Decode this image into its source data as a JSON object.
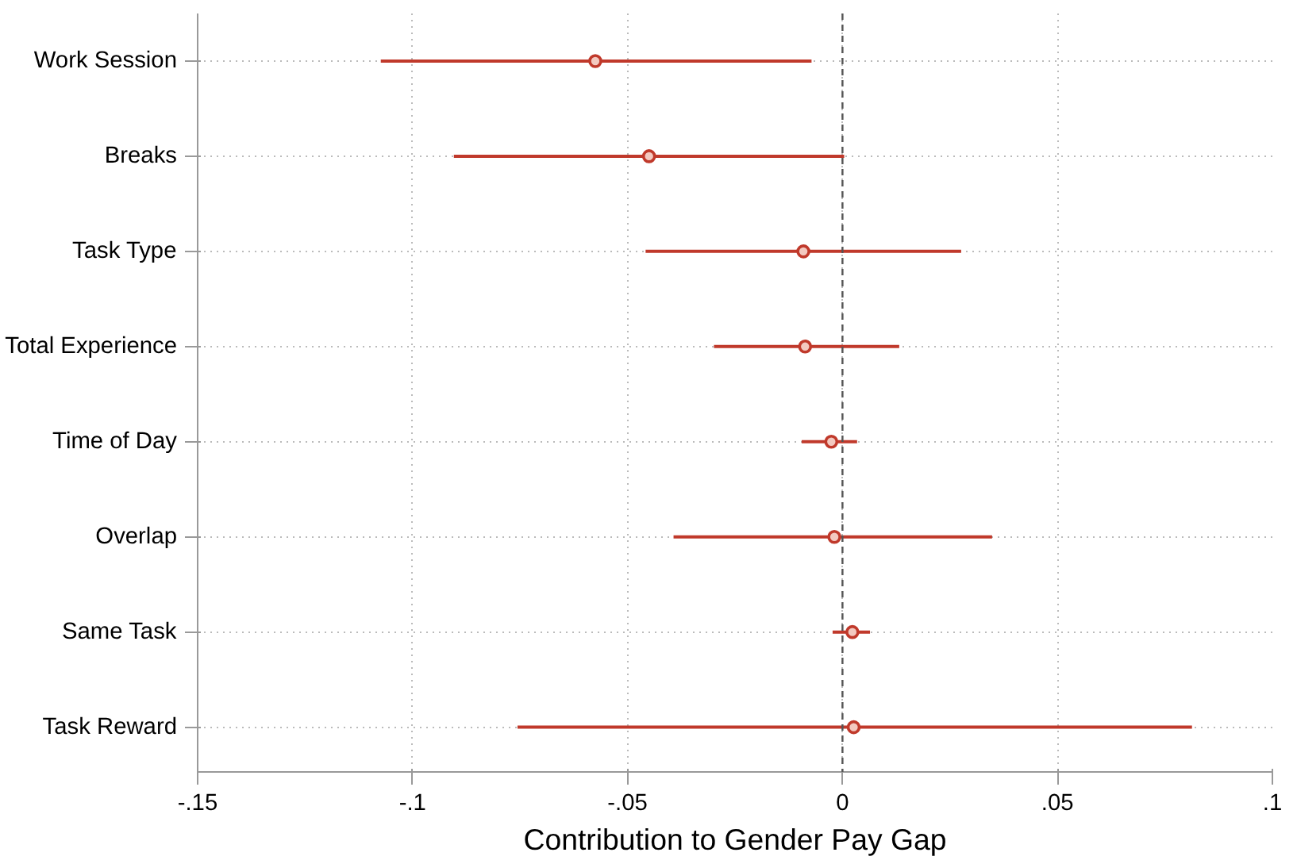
{
  "chart_data": {
    "type": "scatter",
    "orientation": "horizontal",
    "categories": [
      "Work Session",
      "Breaks",
      "Task Type",
      "Total Experience",
      "Time of Day",
      "Overlap",
      "Same Task",
      "Task Reward"
    ],
    "values": [
      -0.0575,
      -0.045,
      -0.0091,
      -0.0087,
      -0.0026,
      -0.0019,
      0.0023,
      0.0026
    ],
    "errors": [
      [
        -0.1074,
        -0.0072
      ],
      [
        -0.0904,
        0.0004
      ],
      [
        -0.0458,
        0.0276
      ],
      [
        -0.0299,
        0.0132
      ],
      [
        -0.0095,
        0.0034
      ],
      [
        -0.0393,
        0.0348
      ],
      [
        -0.0023,
        0.0064
      ],
      [
        -0.0756,
        0.0813
      ]
    ],
    "color": "#c0392b",
    "xlabel": "Contribution to Gender Pay Gap",
    "xlim": [
      -0.15,
      0.1
    ],
    "xticks": [
      {
        "value": -0.15,
        "label": "-.15"
      },
      {
        "value": -0.1,
        "label": "-.1"
      },
      {
        "value": -0.05,
        "label": "-.05"
      },
      0,
      {
        "value": 0.05,
        "label": ".05"
      },
      {
        "value": 0.1,
        "label": ".1"
      }
    ],
    "ref_lines": [
      {
        "axis": "x",
        "value": 0,
        "label": null,
        "color": "#555555",
        "line_style": "dashed"
      }
    ],
    "grid": true,
    "marker": "circle"
  }
}
